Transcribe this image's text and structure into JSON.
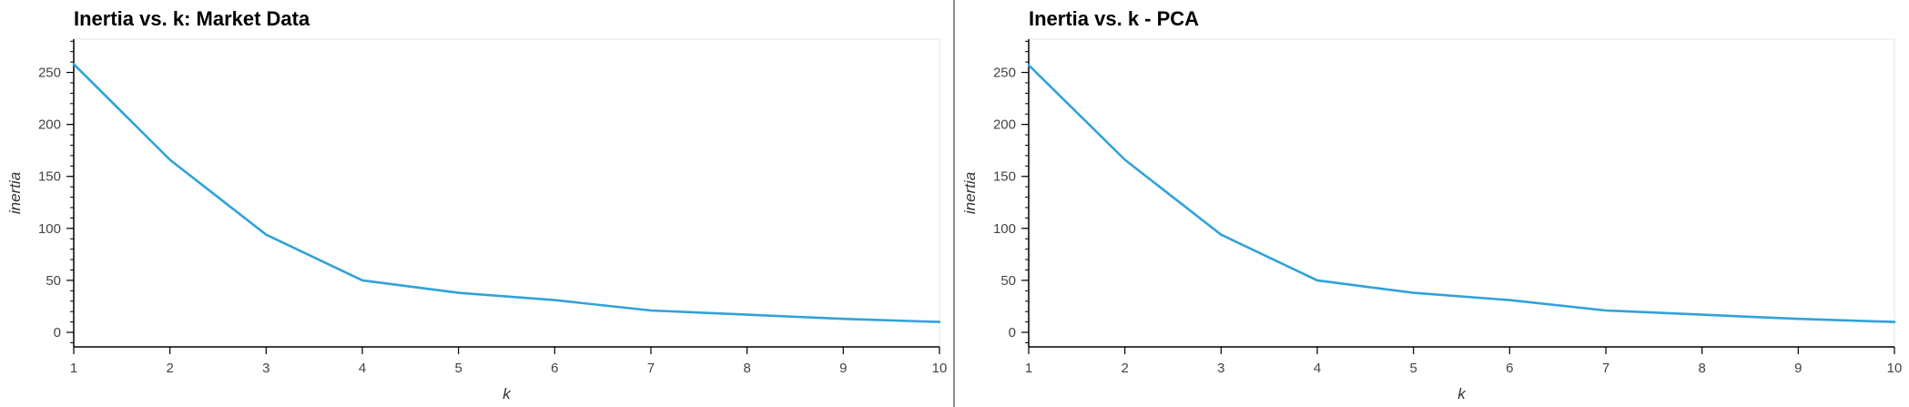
{
  "chart_data": [
    {
      "type": "line",
      "title": "Inertia vs. k: Market Data",
      "xlabel": "k",
      "ylabel": "inertia",
      "x": [
        1,
        2,
        3,
        4,
        5,
        6,
        7,
        8,
        9,
        10
      ],
      "series": [
        {
          "values": [
            258,
            166,
            94,
            50,
            38,
            31,
            21,
            17,
            13,
            10
          ],
          "color": "#30a2da"
        }
      ],
      "xticks": [
        1,
        2,
        3,
        4,
        5,
        6,
        7,
        8,
        9,
        10
      ],
      "yticks": [
        0,
        50,
        100,
        150,
        200,
        250
      ],
      "xlim": [
        1,
        10
      ],
      "ylim": [
        -14,
        282
      ],
      "grid": false,
      "legend": "none"
    },
    {
      "type": "line",
      "title": "Inertia vs. k - PCA",
      "xlabel": "k",
      "ylabel": "inertia",
      "x": [
        1,
        2,
        3,
        4,
        5,
        6,
        7,
        8,
        9,
        10
      ],
      "series": [
        {
          "values": [
            257,
            166,
            94,
            50,
            38,
            31,
            21,
            17,
            13,
            10
          ],
          "color": "#30a2da"
        }
      ],
      "xticks": [
        1,
        2,
        3,
        4,
        5,
        6,
        7,
        8,
        9,
        10
      ],
      "yticks": [
        0,
        50,
        100,
        150,
        200,
        250
      ],
      "xlim": [
        1,
        10
      ],
      "ylim": [
        -14,
        282
      ],
      "grid": false,
      "legend": "none"
    }
  ]
}
